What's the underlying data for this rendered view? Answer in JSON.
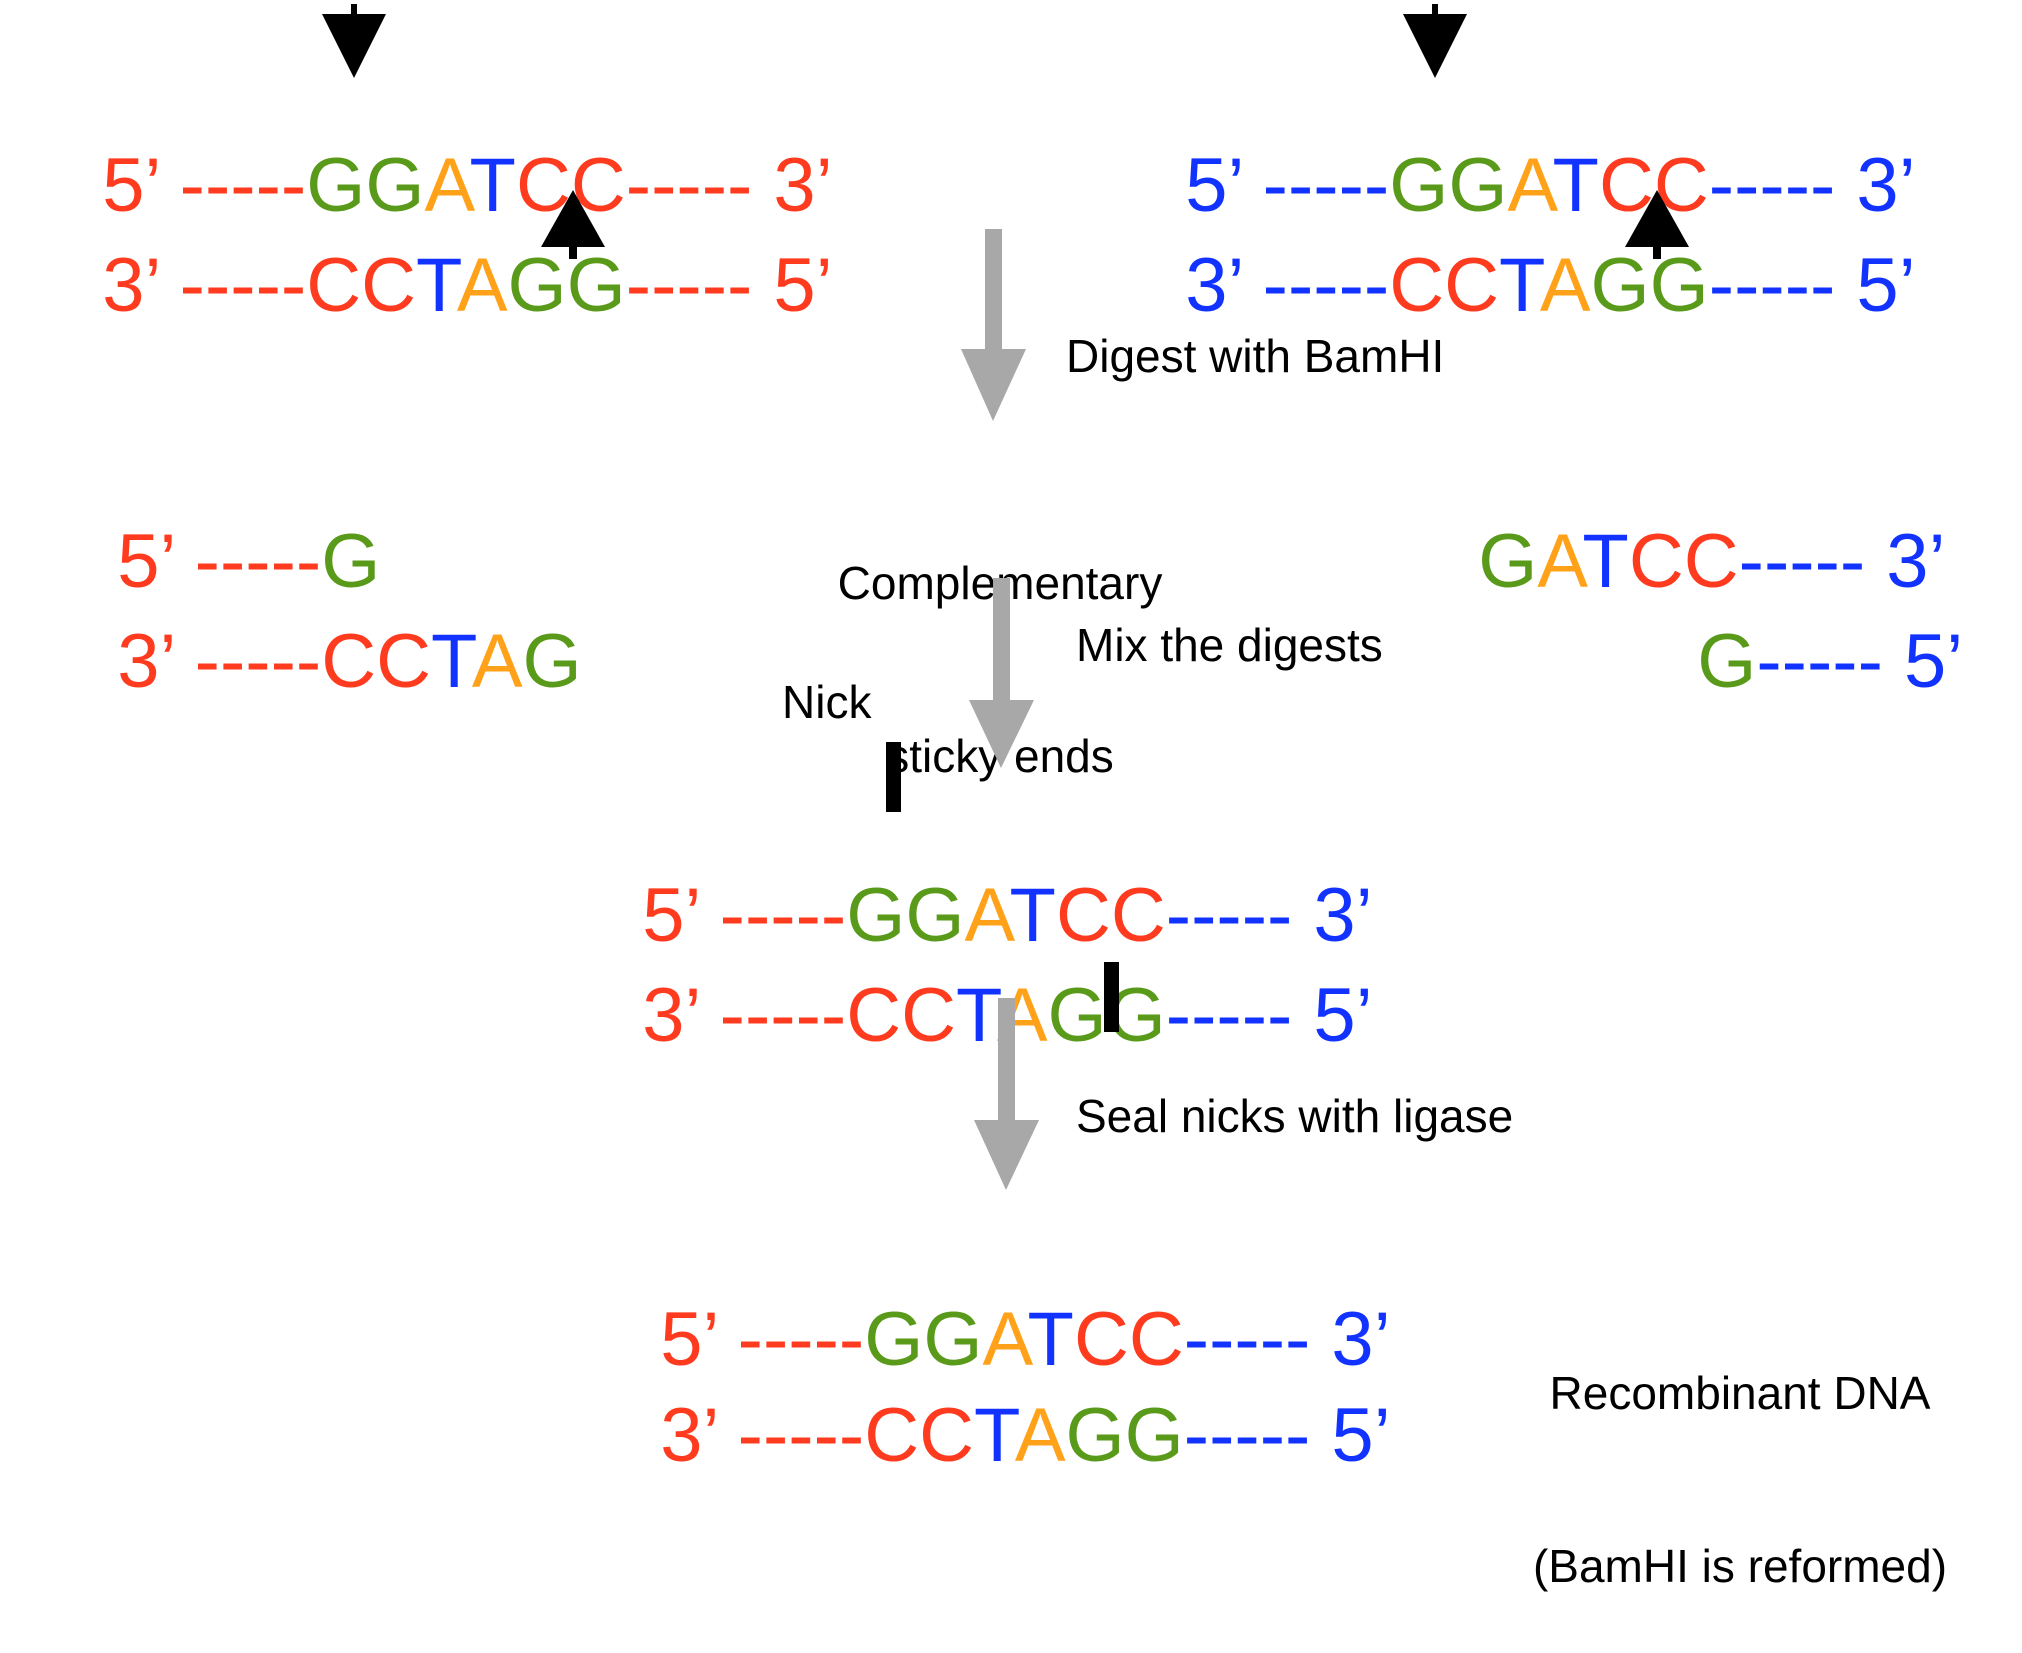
{
  "enzyme": "BamHI",
  "colors": {
    "red": "#ff3b1f",
    "blue": "#1233ff",
    "green": "#5a9a1a",
    "orange": "#ffa21a",
    "arrow_gray": "#a8a8a8",
    "black": "#000000"
  },
  "top_left": {
    "line1": [
      "5’ -----",
      "G",
      "G",
      "A",
      "T",
      "C",
      "C",
      "----- 3’"
    ],
    "line2": [
      "3’ -----",
      "C",
      "C",
      "T",
      "A",
      "G",
      "G",
      "----- 5’"
    ]
  },
  "top_right": {
    "line1": [
      "5’ -----",
      "G",
      "G",
      "A",
      "T",
      "C",
      "C",
      "----- 3’"
    ],
    "line2": [
      "3’ -----",
      "C",
      "C",
      "T",
      "A",
      "G",
      "G",
      "----- 5’"
    ]
  },
  "steps": {
    "digest": "Digest with BamHI",
    "sticky_1": "Complementary",
    "sticky_2": "sticky ends",
    "mix": "Mix the digests",
    "nick": "Nick",
    "seal": "Seal nicks with ligase"
  },
  "frag_left": {
    "line1": [
      "5’ -----",
      "G"
    ],
    "line2": [
      "3’ -----",
      "C",
      "C",
      "T",
      "A",
      "G"
    ]
  },
  "frag_right": {
    "line1": [
      "G",
      "A",
      "T",
      "C",
      "C",
      "----- 3’"
    ],
    "line2": [
      "G",
      "----- 5’"
    ]
  },
  "mixed": {
    "line1": [
      "5’ -----",
      "G",
      "G",
      "A",
      "T",
      "C",
      "C",
      "----- 3’"
    ],
    "line2": [
      "3’ -----",
      "C",
      "C",
      "T",
      "A",
      "G",
      "G",
      "----- 5’"
    ]
  },
  "final": {
    "line1": [
      "5’ -----",
      "G",
      "G",
      "A",
      "T",
      "C",
      "C",
      "----- 3’"
    ],
    "line2": [
      "3’ -----",
      "C",
      "C",
      "T",
      "A",
      "G",
      "G",
      "----- 5’"
    ],
    "label_1": "Recombinant DNA",
    "label_2": "(BamHI is reformed)"
  }
}
